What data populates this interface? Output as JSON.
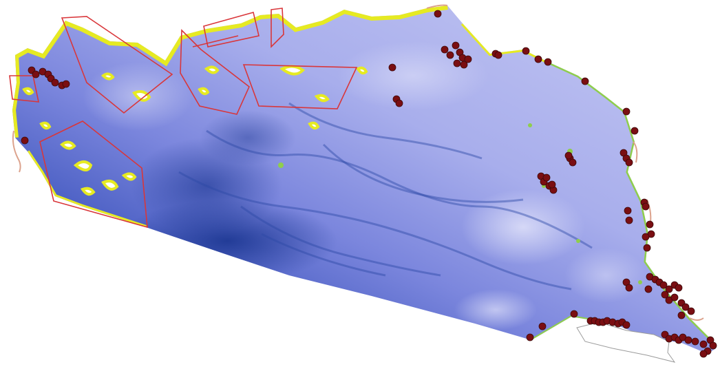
{
  "map": {
    "colors": {
      "background": "#ffffff",
      "sea_deep": "#1b3691",
      "sea_mid": "#6d79d6",
      "sea_shallow": "#b9bdf0",
      "sea_very_shallow": "#d7d9f6",
      "coast_yellow": "#e6ea22",
      "coast_green": "#8fce4c",
      "coast_pink": "#dca28c",
      "polygon_stroke": "#d9363a",
      "marker_fill": "#7a0e12",
      "marker_stroke": "#3b0a0a",
      "land_outline": "#9a9a9a"
    },
    "highlighted_areas": 7
  }
}
